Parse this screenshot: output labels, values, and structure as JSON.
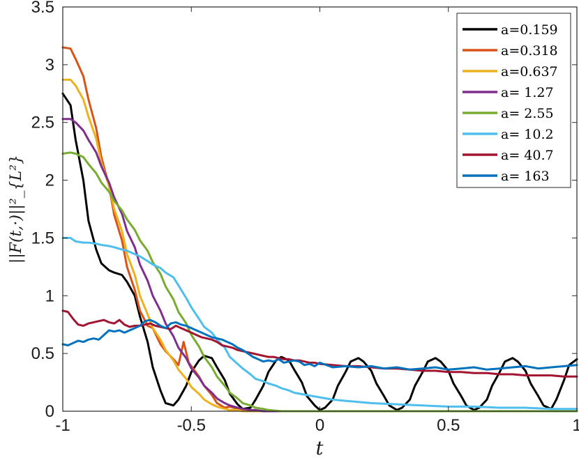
{
  "chart_data": {
    "type": "line",
    "xlabel": "t",
    "ylabel": "||F(t,·)||²_{L²}",
    "xlim": [
      -1,
      1
    ],
    "ylim": [
      0,
      3.5
    ],
    "xticks": [
      "-1",
      "-0.5",
      "0",
      "0.5",
      "1"
    ],
    "xtick_values": [
      -1,
      -0.5,
      0,
      0.5,
      1
    ],
    "yticks": [
      "0",
      "0.5",
      "1",
      "1.5",
      "2",
      "2.5",
      "3",
      "3.5"
    ],
    "ytick_values": [
      0,
      0.5,
      1,
      1.5,
      2,
      2.5,
      3,
      3.5
    ],
    "grid": false,
    "legend_position": "top-right",
    "series": [
      {
        "name": "a=0.159",
        "color": "#000000",
        "x": [
          -1,
          -0.97,
          -0.95,
          -0.92,
          -0.9,
          -0.87,
          -0.85,
          -0.82,
          -0.8,
          -0.77,
          -0.75,
          -0.72,
          -0.7,
          -0.67,
          -0.65,
          -0.62,
          -0.6,
          -0.57,
          -0.55,
          -0.52,
          -0.5,
          -0.47,
          -0.45,
          -0.42,
          -0.4,
          -0.37,
          -0.35,
          -0.32,
          -0.3,
          -0.27,
          -0.25,
          -0.22,
          -0.2,
          -0.17,
          -0.15,
          -0.12,
          -0.1,
          -0.07,
          -0.05,
          -0.02,
          0,
          0.02,
          0.05,
          0.07,
          0.1,
          0.12,
          0.15,
          0.17,
          0.2,
          0.22,
          0.25,
          0.27,
          0.3,
          0.32,
          0.35,
          0.37,
          0.4,
          0.42,
          0.45,
          0.47,
          0.5,
          0.52,
          0.55,
          0.57,
          0.6,
          0.62,
          0.65,
          0.67,
          0.7,
          0.72,
          0.75,
          0.77,
          0.8,
          0.82,
          0.85,
          0.87,
          0.9,
          0.92,
          0.95,
          0.97,
          1
        ],
        "y": [
          2.75,
          2.65,
          2.35,
          2.0,
          1.65,
          1.4,
          1.28,
          1.22,
          1.2,
          1.18,
          1.12,
          1.0,
          0.82,
          0.6,
          0.38,
          0.18,
          0.07,
          0.05,
          0.1,
          0.22,
          0.34,
          0.44,
          0.48,
          0.46,
          0.38,
          0.27,
          0.15,
          0.06,
          0.02,
          0.03,
          0.1,
          0.22,
          0.34,
          0.44,
          0.47,
          0.44,
          0.36,
          0.25,
          0.13,
          0.05,
          0.01,
          0.03,
          0.1,
          0.22,
          0.34,
          0.43,
          0.46,
          0.43,
          0.35,
          0.24,
          0.13,
          0.05,
          0.01,
          0.03,
          0.1,
          0.22,
          0.34,
          0.43,
          0.46,
          0.43,
          0.35,
          0.24,
          0.13,
          0.05,
          0.01,
          0.03,
          0.1,
          0.22,
          0.34,
          0.43,
          0.46,
          0.43,
          0.35,
          0.24,
          0.13,
          0.05,
          0.02,
          0.1,
          0.27,
          0.4,
          0.45
        ]
      },
      {
        "name": "a=0.318",
        "color": "#d95319",
        "x": [
          -1,
          -0.97,
          -0.95,
          -0.92,
          -0.9,
          -0.87,
          -0.85,
          -0.82,
          -0.8,
          -0.77,
          -0.75,
          -0.72,
          -0.7,
          -0.67,
          -0.65,
          -0.62,
          -0.6,
          -0.57,
          -0.55,
          -0.53,
          -0.51,
          -0.49,
          -0.47,
          -0.45,
          -0.42,
          -0.4,
          -0.37,
          -0.35,
          -0.32,
          -0.3,
          -0.27,
          -0.25,
          -0.22,
          -0.2,
          -0.15,
          -0.1,
          0,
          0.2,
          0.5,
          0.8,
          1
        ],
        "y": [
          3.15,
          3.14,
          3.05,
          2.9,
          2.7,
          2.45,
          2.2,
          1.95,
          1.7,
          1.48,
          1.25,
          1.05,
          0.87,
          0.74,
          0.72,
          0.58,
          0.52,
          0.45,
          0.4,
          0.6,
          0.42,
          0.36,
          0.3,
          0.22,
          0.14,
          0.07,
          0.03,
          0.04,
          0.02,
          0.01,
          0.01,
          0.0,
          0.0,
          0.0,
          0.0,
          0.0,
          0.0,
          0.0,
          0.0,
          0.0,
          0.0
        ]
      },
      {
        "name": "a=0.637",
        "color": "#edb120",
        "x": [
          -1,
          -0.97,
          -0.95,
          -0.92,
          -0.9,
          -0.87,
          -0.85,
          -0.82,
          -0.8,
          -0.77,
          -0.75,
          -0.72,
          -0.7,
          -0.67,
          -0.65,
          -0.62,
          -0.6,
          -0.57,
          -0.55,
          -0.52,
          -0.5,
          -0.47,
          -0.45,
          -0.42,
          -0.4,
          -0.37,
          -0.35,
          -0.32,
          -0.3,
          -0.27,
          -0.25,
          -0.2,
          -0.15,
          -0.1,
          0,
          0.5,
          1
        ],
        "y": [
          2.87,
          2.87,
          2.82,
          2.7,
          2.55,
          2.36,
          2.15,
          1.95,
          1.75,
          1.56,
          1.36,
          1.18,
          1.0,
          0.84,
          0.72,
          0.62,
          0.53,
          0.44,
          0.36,
          0.28,
          0.21,
          0.15,
          0.1,
          0.06,
          0.04,
          0.02,
          0.01,
          0.01,
          0.0,
          0.0,
          0.0,
          0.0,
          0.0,
          0.0,
          0.0,
          0.0,
          0.0
        ]
      },
      {
        "name": "a= 1.27",
        "color": "#7e2f8e",
        "x": [
          -1,
          -0.97,
          -0.95,
          -0.92,
          -0.9,
          -0.87,
          -0.85,
          -0.82,
          -0.8,
          -0.77,
          -0.75,
          -0.72,
          -0.7,
          -0.67,
          -0.65,
          -0.62,
          -0.6,
          -0.57,
          -0.55,
          -0.52,
          -0.5,
          -0.47,
          -0.45,
          -0.42,
          -0.4,
          -0.37,
          -0.35,
          -0.32,
          -0.3,
          -0.27,
          -0.25,
          -0.22,
          -0.2,
          -0.15,
          -0.1,
          0,
          0.5,
          1
        ],
        "y": [
          2.53,
          2.53,
          2.5,
          2.43,
          2.35,
          2.24,
          2.12,
          1.98,
          1.85,
          1.71,
          1.56,
          1.42,
          1.27,
          1.13,
          1.0,
          0.87,
          0.76,
          0.65,
          0.55,
          0.46,
          0.37,
          0.29,
          0.22,
          0.16,
          0.11,
          0.07,
          0.05,
          0.03,
          0.02,
          0.01,
          0.01,
          0.0,
          0.0,
          0.0,
          0.0,
          0.0,
          0.0,
          0.0
        ]
      },
      {
        "name": "a= 2.55",
        "color": "#77ac30",
        "x": [
          -1,
          -0.97,
          -0.95,
          -0.92,
          -0.9,
          -0.87,
          -0.85,
          -0.82,
          -0.8,
          -0.77,
          -0.75,
          -0.72,
          -0.7,
          -0.67,
          -0.65,
          -0.62,
          -0.6,
          -0.57,
          -0.55,
          -0.52,
          -0.5,
          -0.47,
          -0.45,
          -0.42,
          -0.4,
          -0.37,
          -0.35,
          -0.32,
          -0.3,
          -0.27,
          -0.25,
          -0.22,
          -0.2,
          -0.15,
          -0.1,
          -0.05,
          0,
          0.5,
          1
        ],
        "y": [
          2.23,
          2.24,
          2.23,
          2.2,
          2.14,
          2.06,
          1.98,
          1.9,
          1.82,
          1.74,
          1.66,
          1.57,
          1.48,
          1.39,
          1.29,
          1.19,
          1.08,
          0.97,
          0.86,
          0.76,
          0.66,
          0.56,
          0.47,
          0.38,
          0.3,
          0.22,
          0.16,
          0.11,
          0.07,
          0.05,
          0.03,
          0.02,
          0.01,
          0.0,
          0.0,
          0.0,
          0.0,
          0.0,
          0.0
        ]
      },
      {
        "name": "a= 10.2",
        "color": "#4dbeee",
        "x": [
          -1,
          -0.97,
          -0.95,
          -0.92,
          -0.9,
          -0.87,
          -0.85,
          -0.82,
          -0.8,
          -0.77,
          -0.75,
          -0.72,
          -0.7,
          -0.67,
          -0.65,
          -0.62,
          -0.6,
          -0.57,
          -0.55,
          -0.52,
          -0.5,
          -0.47,
          -0.45,
          -0.42,
          -0.4,
          -0.37,
          -0.35,
          -0.32,
          -0.3,
          -0.27,
          -0.25,
          -0.22,
          -0.2,
          -0.17,
          -0.15,
          -0.12,
          -0.1,
          -0.05,
          0,
          0.05,
          0.1,
          0.15,
          0.2,
          0.3,
          0.4,
          0.5,
          0.6,
          0.7,
          0.8,
          0.9,
          1
        ],
        "y": [
          1.5,
          1.5,
          1.47,
          1.46,
          1.46,
          1.45,
          1.44,
          1.43,
          1.42,
          1.4,
          1.39,
          1.36,
          1.34,
          1.3,
          1.27,
          1.24,
          1.2,
          1.16,
          1.09,
          0.98,
          0.9,
          0.8,
          0.73,
          0.68,
          0.62,
          0.55,
          0.47,
          0.41,
          0.37,
          0.32,
          0.28,
          0.26,
          0.24,
          0.22,
          0.2,
          0.18,
          0.16,
          0.14,
          0.12,
          0.1,
          0.09,
          0.08,
          0.07,
          0.06,
          0.05,
          0.04,
          0.04,
          0.03,
          0.03,
          0.02,
          0.02
        ]
      },
      {
        "name": "a= 40.7",
        "color": "#a2142f",
        "x": [
          -1,
          -0.98,
          -0.96,
          -0.94,
          -0.92,
          -0.9,
          -0.88,
          -0.86,
          -0.84,
          -0.82,
          -0.8,
          -0.78,
          -0.76,
          -0.74,
          -0.72,
          -0.7,
          -0.68,
          -0.66,
          -0.64,
          -0.62,
          -0.6,
          -0.58,
          -0.56,
          -0.54,
          -0.52,
          -0.5,
          -0.48,
          -0.46,
          -0.44,
          -0.42,
          -0.4,
          -0.38,
          -0.36,
          -0.34,
          -0.32,
          -0.3,
          -0.28,
          -0.26,
          -0.24,
          -0.22,
          -0.2,
          -0.18,
          -0.16,
          -0.14,
          -0.12,
          -0.1,
          -0.08,
          -0.06,
          -0.04,
          -0.02,
          0,
          0.05,
          0.1,
          0.15,
          0.2,
          0.25,
          0.3,
          0.35,
          0.4,
          0.45,
          0.5,
          0.55,
          0.6,
          0.65,
          0.7,
          0.75,
          0.8,
          0.85,
          0.9,
          0.95,
          1
        ],
        "y": [
          0.87,
          0.86,
          0.8,
          0.75,
          0.74,
          0.76,
          0.77,
          0.78,
          0.79,
          0.77,
          0.76,
          0.79,
          0.75,
          0.73,
          0.74,
          0.74,
          0.75,
          0.76,
          0.74,
          0.73,
          0.72,
          0.71,
          0.74,
          0.72,
          0.7,
          0.68,
          0.66,
          0.64,
          0.63,
          0.62,
          0.6,
          0.57,
          0.56,
          0.55,
          0.53,
          0.52,
          0.51,
          0.5,
          0.49,
          0.48,
          0.47,
          0.47,
          0.46,
          0.45,
          0.45,
          0.44,
          0.44,
          0.43,
          0.42,
          0.42,
          0.41,
          0.4,
          0.39,
          0.39,
          0.38,
          0.37,
          0.37,
          0.36,
          0.35,
          0.35,
          0.34,
          0.34,
          0.33,
          0.33,
          0.32,
          0.32,
          0.31,
          0.31,
          0.31,
          0.3,
          0.3
        ]
      },
      {
        "name": "a= 163",
        "color": "#0072bd",
        "x": [
          -1,
          -0.98,
          -0.96,
          -0.94,
          -0.92,
          -0.9,
          -0.88,
          -0.86,
          -0.84,
          -0.82,
          -0.8,
          -0.78,
          -0.76,
          -0.74,
          -0.72,
          -0.7,
          -0.68,
          -0.66,
          -0.64,
          -0.62,
          -0.6,
          -0.58,
          -0.56,
          -0.54,
          -0.52,
          -0.5,
          -0.48,
          -0.46,
          -0.44,
          -0.42,
          -0.4,
          -0.38,
          -0.36,
          -0.34,
          -0.32,
          -0.3,
          -0.28,
          -0.26,
          -0.24,
          -0.22,
          -0.2,
          -0.18,
          -0.16,
          -0.14,
          -0.12,
          -0.1,
          -0.08,
          -0.06,
          -0.04,
          -0.02,
          0,
          0.05,
          0.1,
          0.15,
          0.2,
          0.25,
          0.3,
          0.35,
          0.4,
          0.45,
          0.5,
          0.55,
          0.6,
          0.65,
          0.7,
          0.75,
          0.8,
          0.85,
          0.9,
          0.95,
          1
        ],
        "y": [
          0.58,
          0.57,
          0.59,
          0.61,
          0.6,
          0.62,
          0.63,
          0.62,
          0.66,
          0.7,
          0.69,
          0.7,
          0.68,
          0.7,
          0.72,
          0.74,
          0.78,
          0.79,
          0.77,
          0.74,
          0.72,
          0.76,
          0.77,
          0.75,
          0.74,
          0.72,
          0.7,
          0.68,
          0.66,
          0.64,
          0.63,
          0.62,
          0.6,
          0.58,
          0.55,
          0.53,
          0.5,
          0.47,
          0.45,
          0.43,
          0.44,
          0.43,
          0.45,
          0.42,
          0.43,
          0.44,
          0.43,
          0.4,
          0.41,
          0.39,
          0.42,
          0.38,
          0.39,
          0.38,
          0.39,
          0.37,
          0.38,
          0.36,
          0.37,
          0.38,
          0.36,
          0.37,
          0.38,
          0.36,
          0.37,
          0.38,
          0.39,
          0.37,
          0.38,
          0.39,
          0.4
        ]
      }
    ]
  }
}
